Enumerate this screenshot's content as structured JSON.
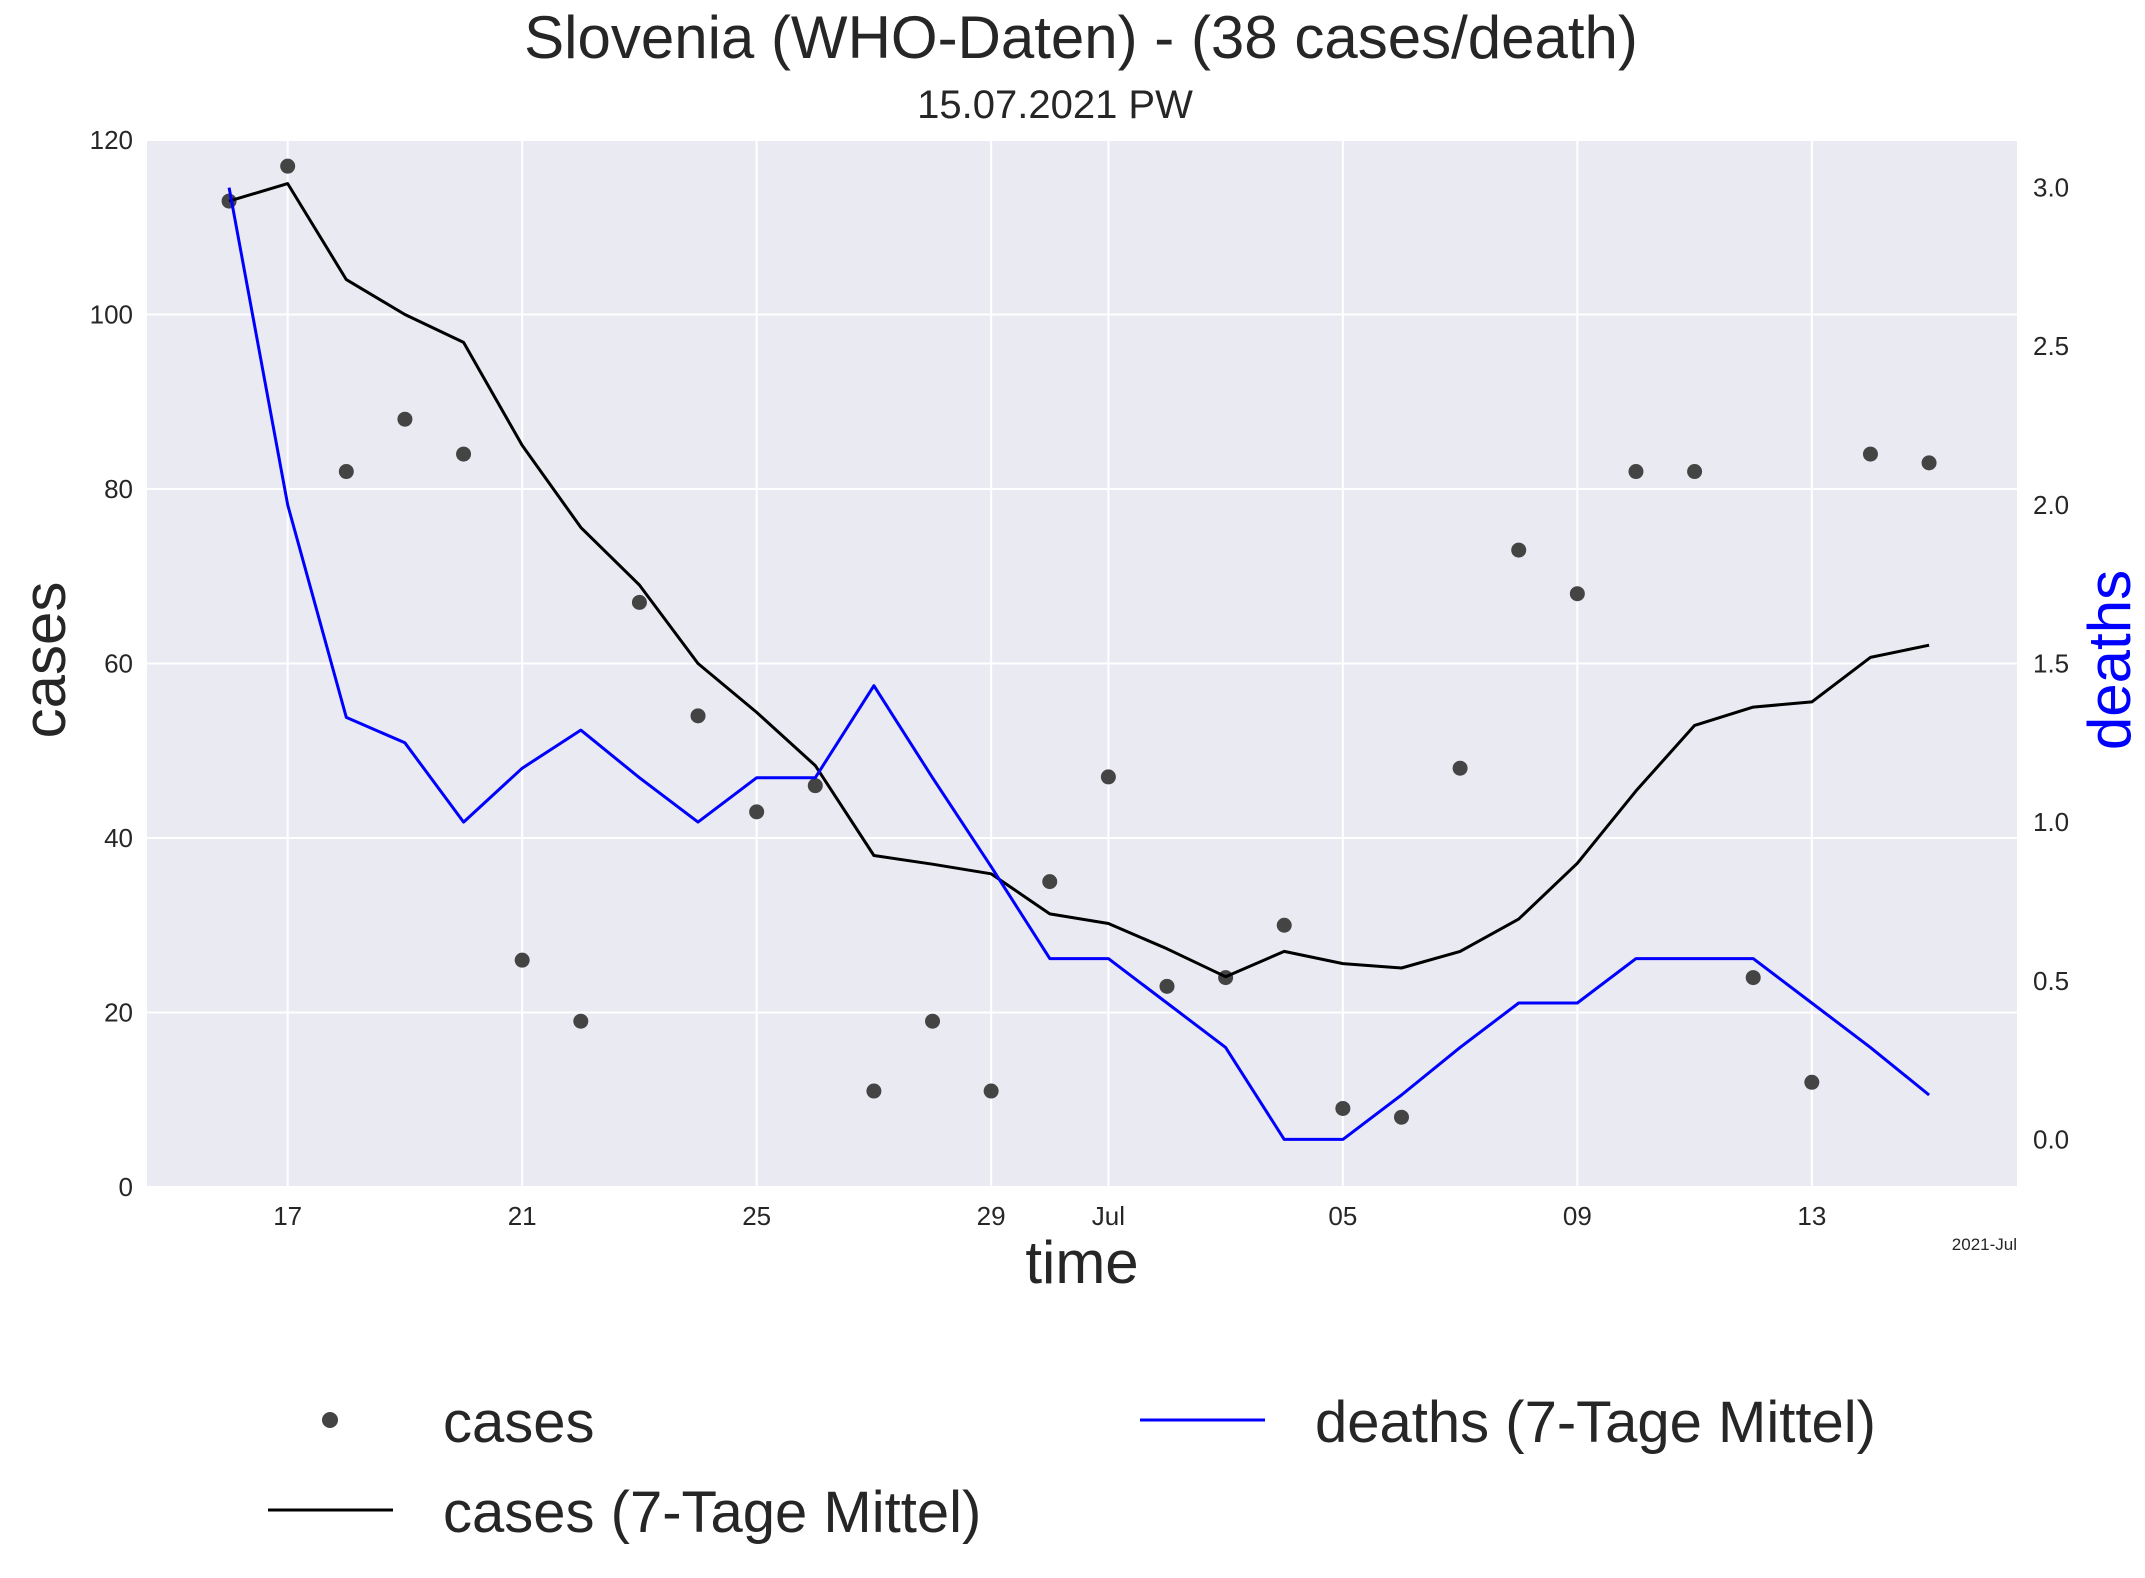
{
  "chart_data": {
    "type": "line",
    "title": "Slovenia (WHO-Daten) - (38 cases/death)",
    "subtitle": "15.07.2021 PW",
    "xlabel": "time",
    "ylabel": "cases",
    "ylabel_right": "deaths",
    "x_corner_label": "2021-Jul",
    "x_dates": [
      "2021-06-16",
      "2021-06-17",
      "2021-06-18",
      "2021-06-19",
      "2021-06-20",
      "2021-06-21",
      "2021-06-22",
      "2021-06-23",
      "2021-06-24",
      "2021-06-25",
      "2021-06-26",
      "2021-06-27",
      "2021-06-28",
      "2021-06-29",
      "2021-06-30",
      "2021-07-01",
      "2021-07-02",
      "2021-07-03",
      "2021-07-04",
      "2021-07-05",
      "2021-07-06",
      "2021-07-07",
      "2021-07-08",
      "2021-07-09",
      "2021-07-10",
      "2021-07-11",
      "2021-07-12",
      "2021-07-13",
      "2021-07-14",
      "2021-07-15"
    ],
    "xlim": [
      "2021-06-14.6",
      "2021-07-16.5"
    ],
    "x_ticks": [
      {
        "date": "2021-06-17",
        "label": "17"
      },
      {
        "date": "2021-06-21",
        "label": "21"
      },
      {
        "date": "2021-06-25",
        "label": "25"
      },
      {
        "date": "2021-06-29",
        "label": "29"
      },
      {
        "date": "2021-07-01",
        "label": "Jul"
      },
      {
        "date": "2021-07-05",
        "label": "05"
      },
      {
        "date": "2021-07-09",
        "label": "09"
      },
      {
        "date": "2021-07-13",
        "label": "13"
      }
    ],
    "ylim": [
      0,
      120
    ],
    "y_ticks": [
      0,
      20,
      40,
      60,
      80,
      100,
      120
    ],
    "ylim_right": [
      -0.15,
      3.15
    ],
    "y_ticks_right": [
      "0.0",
      "0.5",
      "1.0",
      "1.5",
      "2.0",
      "2.5",
      "3.0"
    ],
    "grid": true,
    "legend_position": "bottom",
    "series": [
      {
        "name": "cases",
        "kind": "scatter",
        "axis": "left",
        "color": "#444444",
        "values": [
          113,
          117,
          82,
          88,
          84,
          26,
          19,
          67,
          54,
          43,
          46,
          11,
          19,
          11,
          35,
          47,
          23,
          24,
          30,
          9,
          8,
          48,
          73,
          68,
          82,
          82,
          24,
          12,
          84,
          83
        ]
      },
      {
        "name": "cases (7-Tage Mittel)",
        "kind": "line",
        "axis": "left",
        "color": "#000000",
        "values": [
          113,
          115,
          104,
          100,
          96.8,
          85,
          75.6,
          69,
          60,
          54.4,
          48.3,
          38,
          37,
          35.9,
          31.3,
          30.2,
          27.3,
          24.1,
          27,
          25.6,
          25.1,
          27,
          30.7,
          37.1,
          45.4,
          52.9,
          55,
          55.6,
          60.7,
          62.1
        ]
      },
      {
        "name": "deaths (7-Tage Mittel)",
        "kind": "line",
        "axis": "right",
        "color": "#0000ff",
        "values": [
          3.0,
          2.0,
          1.33,
          1.25,
          1.0,
          1.17,
          1.29,
          1.14,
          1.0,
          1.14,
          1.14,
          1.43,
          1.14,
          0.86,
          0.57,
          0.57,
          0.43,
          0.29,
          0.0,
          0.0,
          0.14,
          0.29,
          0.43,
          0.43,
          0.57,
          0.57,
          0.57,
          0.43,
          0.29,
          0.14
        ]
      }
    ]
  }
}
